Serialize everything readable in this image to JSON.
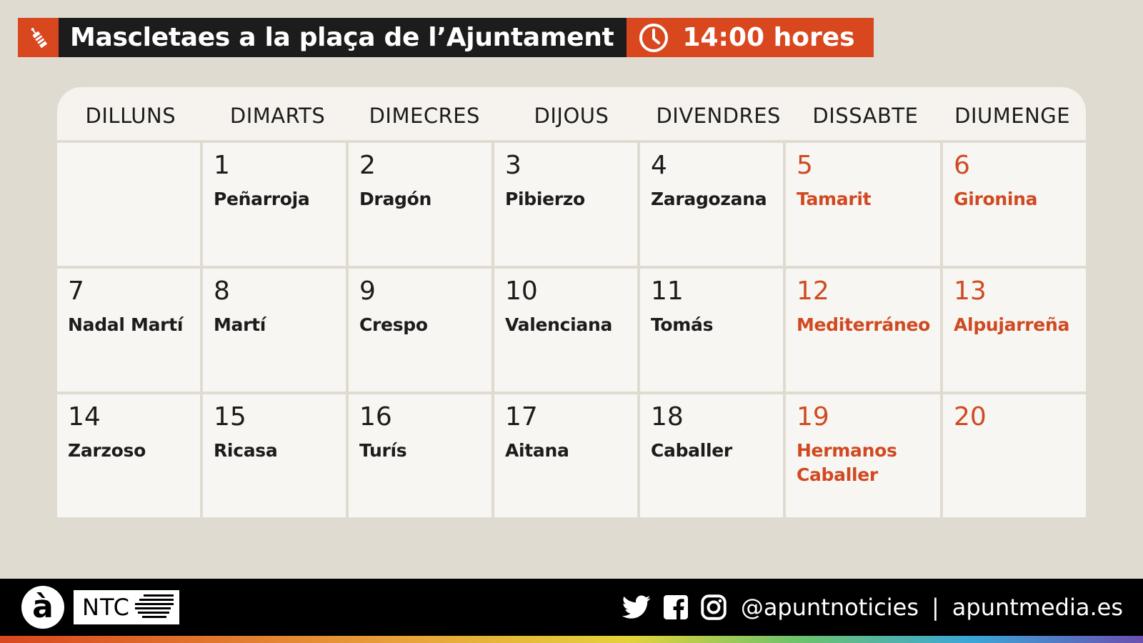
{
  "header": {
    "title": "Mascletaes a la plaça de l’Ajuntament",
    "time": "14:00 hores",
    "icons": {
      "left": "firework-icon",
      "time": "clock-icon"
    },
    "colors": {
      "accent": "#d9471f",
      "title_bg": "#1c1c1c"
    }
  },
  "calendar": {
    "weekdays": [
      "DILLUNS",
      "DIMARTS",
      "DIMECRES",
      "DIJOUS",
      "DIVENDRES",
      "DISSABTE",
      "DIUMENGE"
    ],
    "weekend_color": "#cf4a22",
    "weeks": [
      [
        {
          "day": "",
          "name": ""
        },
        {
          "day": "1",
          "name": "Peñarroja"
        },
        {
          "day": "2",
          "name": "Dragón"
        },
        {
          "day": "3",
          "name": "Pibierzo"
        },
        {
          "day": "4",
          "name": "Zaragozana"
        },
        {
          "day": "5",
          "name": "Tamarit"
        },
        {
          "day": "6",
          "name": "Gironina"
        }
      ],
      [
        {
          "day": "7",
          "name": "Nadal Martí"
        },
        {
          "day": "8",
          "name": "Martí"
        },
        {
          "day": "9",
          "name": "Crespo"
        },
        {
          "day": "10",
          "name": "Valenciana"
        },
        {
          "day": "11",
          "name": "Tomás"
        },
        {
          "day": "12",
          "name": "Mediterráneo"
        },
        {
          "day": "13",
          "name": "Alpujarreña"
        }
      ],
      [
        {
          "day": "14",
          "name": "Zarzoso"
        },
        {
          "day": "15",
          "name": "Ricasa"
        },
        {
          "day": "16",
          "name": "Turís"
        },
        {
          "day": "17",
          "name": "Aitana"
        },
        {
          "day": "18",
          "name": "Caballer"
        },
        {
          "day": "19",
          "name": "Hermanos Caballer"
        },
        {
          "day": "20",
          "name": ""
        }
      ]
    ]
  },
  "footer": {
    "logo_letter": "à",
    "brand": "NTC",
    "handle": "@apuntnoticies",
    "separator": "|",
    "site": "apuntmedia.es",
    "social_icons": [
      "twitter-icon",
      "facebook-icon",
      "instagram-icon"
    ]
  }
}
